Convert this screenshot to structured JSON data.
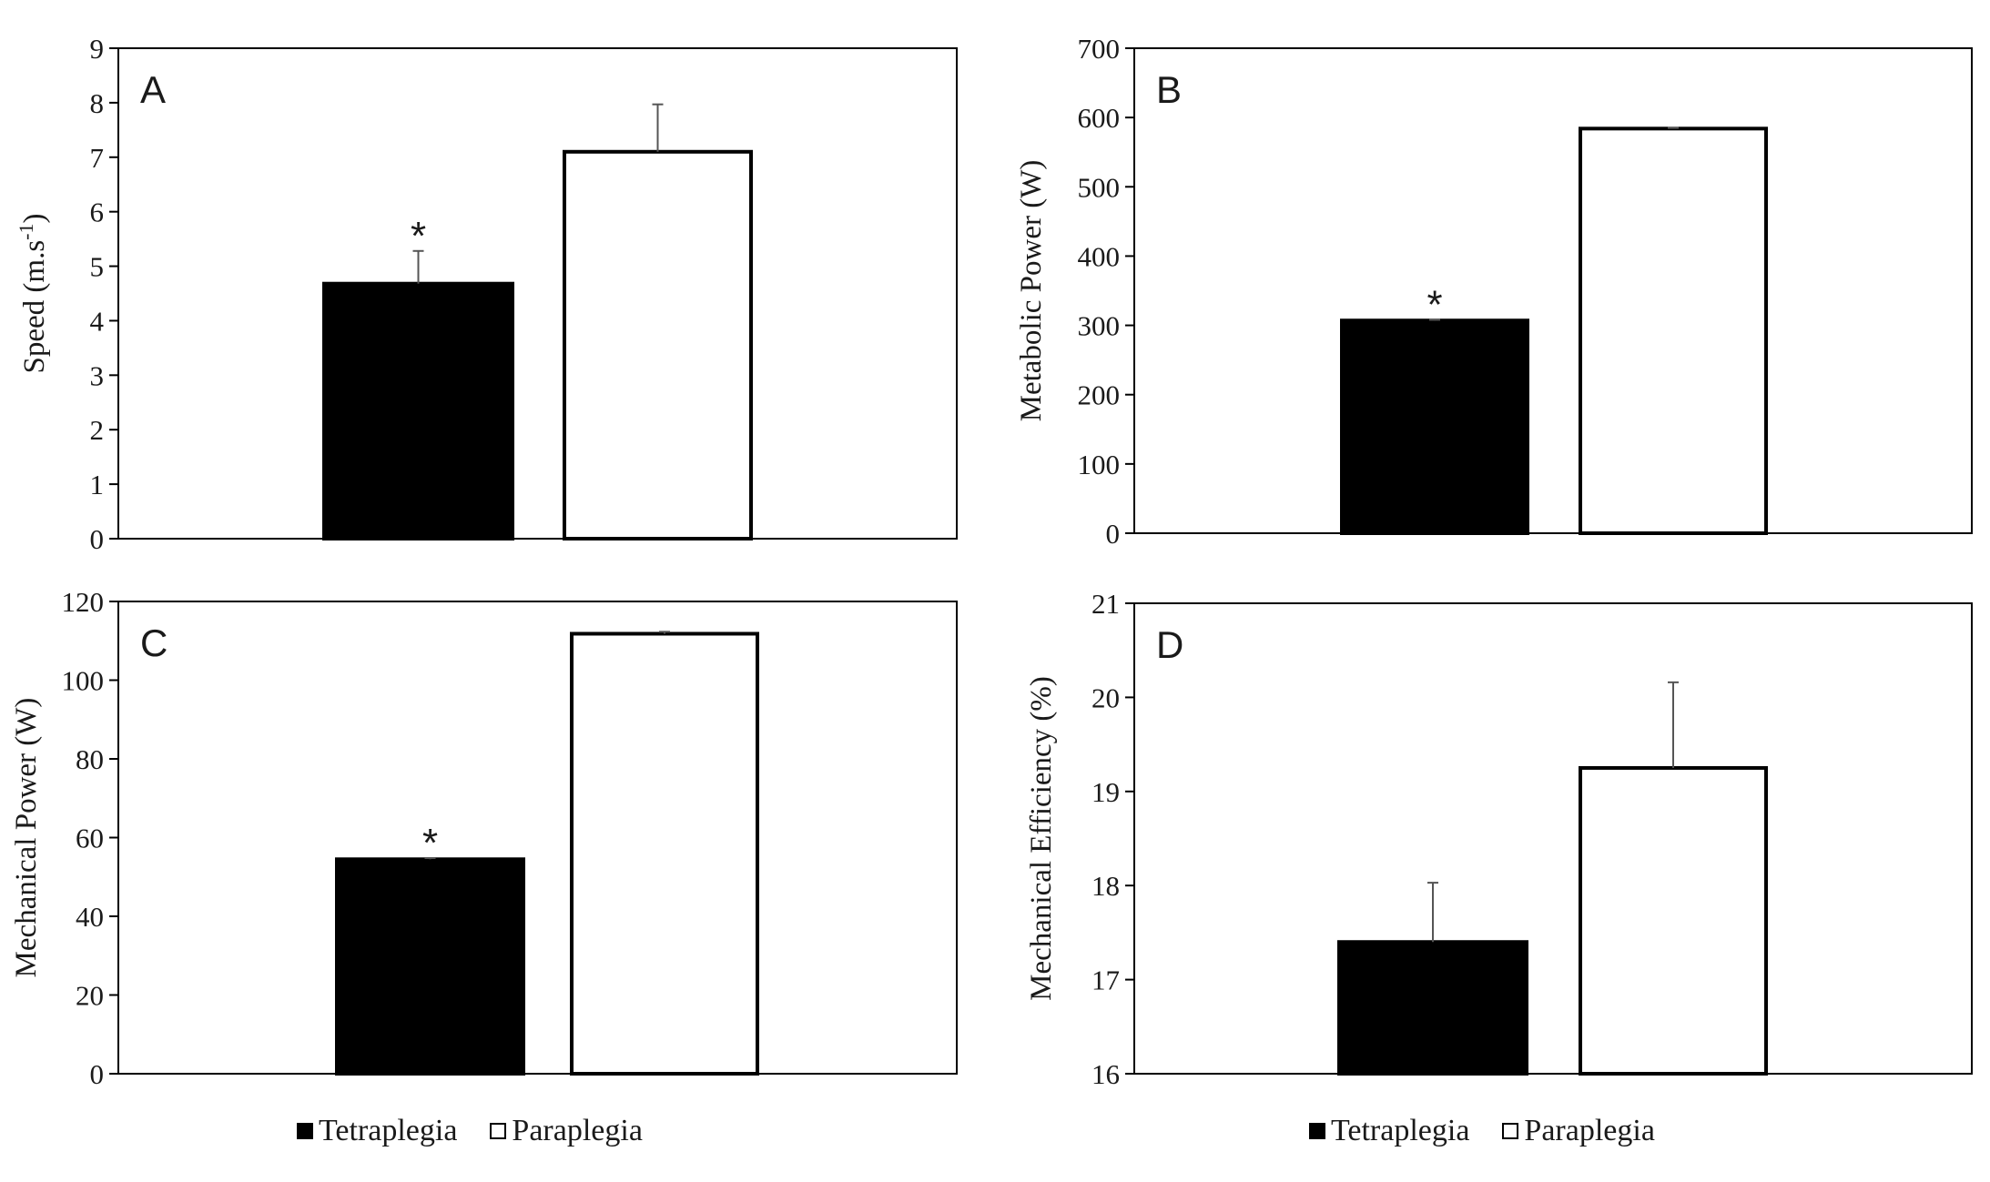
{
  "colors": {
    "tetraplegia": "#000000",
    "paraplegia": "#ffffff",
    "stroke": "#000000",
    "errorbar": "#555555"
  },
  "legend": {
    "left": {
      "tetraplegia": "Tetraplegia",
      "paraplegia": "Paraplegia"
    },
    "right": {
      "tetraplegia": "Tetraplegia",
      "paraplegia": "Paraplegia"
    }
  },
  "chart_data": [
    {
      "type": "bar",
      "panel": "A",
      "ylabel": "Speed (m.s",
      "ylabel_sup": "-1",
      "ylabel_suffix": ")",
      "ylim": [
        0,
        9
      ],
      "yticks": [
        "0",
        "1",
        "2",
        "3",
        "4",
        "5",
        "6",
        "7",
        "8",
        "9"
      ],
      "categories": [
        "Tetraplegia",
        "Paraplegia"
      ],
      "values": [
        4.68,
        7.1
      ],
      "errors": [
        0.6,
        0.87
      ],
      "significance": [
        "*",
        ""
      ]
    },
    {
      "type": "bar",
      "panel": "B",
      "ylabel": "Metabolic Power (W)",
      "ylim": [
        0,
        700
      ],
      "yticks": [
        "0",
        "100",
        "200",
        "300",
        "400",
        "500",
        "600",
        "700"
      ],
      "categories": [
        "Tetraplegia",
        "Paraplegia"
      ],
      "values": [
        307,
        584
      ],
      "errors": [
        1,
        1
      ],
      "significance": [
        "*",
        ""
      ]
    },
    {
      "type": "bar",
      "panel": "C",
      "ylabel": "Mechanical Power (W)",
      "ylim": [
        0,
        120
      ],
      "yticks": [
        "0",
        "20",
        "40",
        "60",
        "80",
        "100",
        "120"
      ],
      "categories": [
        "Tetraplegia",
        "Paraplegia"
      ],
      "values": [
        54.5,
        111.8
      ],
      "errors": [
        0.3,
        0.5
      ],
      "significance": [
        "*",
        ""
      ]
    },
    {
      "type": "bar",
      "panel": "D",
      "ylabel": "Mechanical Efficiency (%)",
      "ylim": [
        16,
        21
      ],
      "yticks": [
        "16",
        "17",
        "18",
        "19",
        "20",
        "21"
      ],
      "categories": [
        "Tetraplegia",
        "Paraplegia"
      ],
      "values": [
        17.4,
        19.25
      ],
      "errors": [
        0.63,
        0.91
      ],
      "significance": [
        "",
        ""
      ]
    }
  ]
}
